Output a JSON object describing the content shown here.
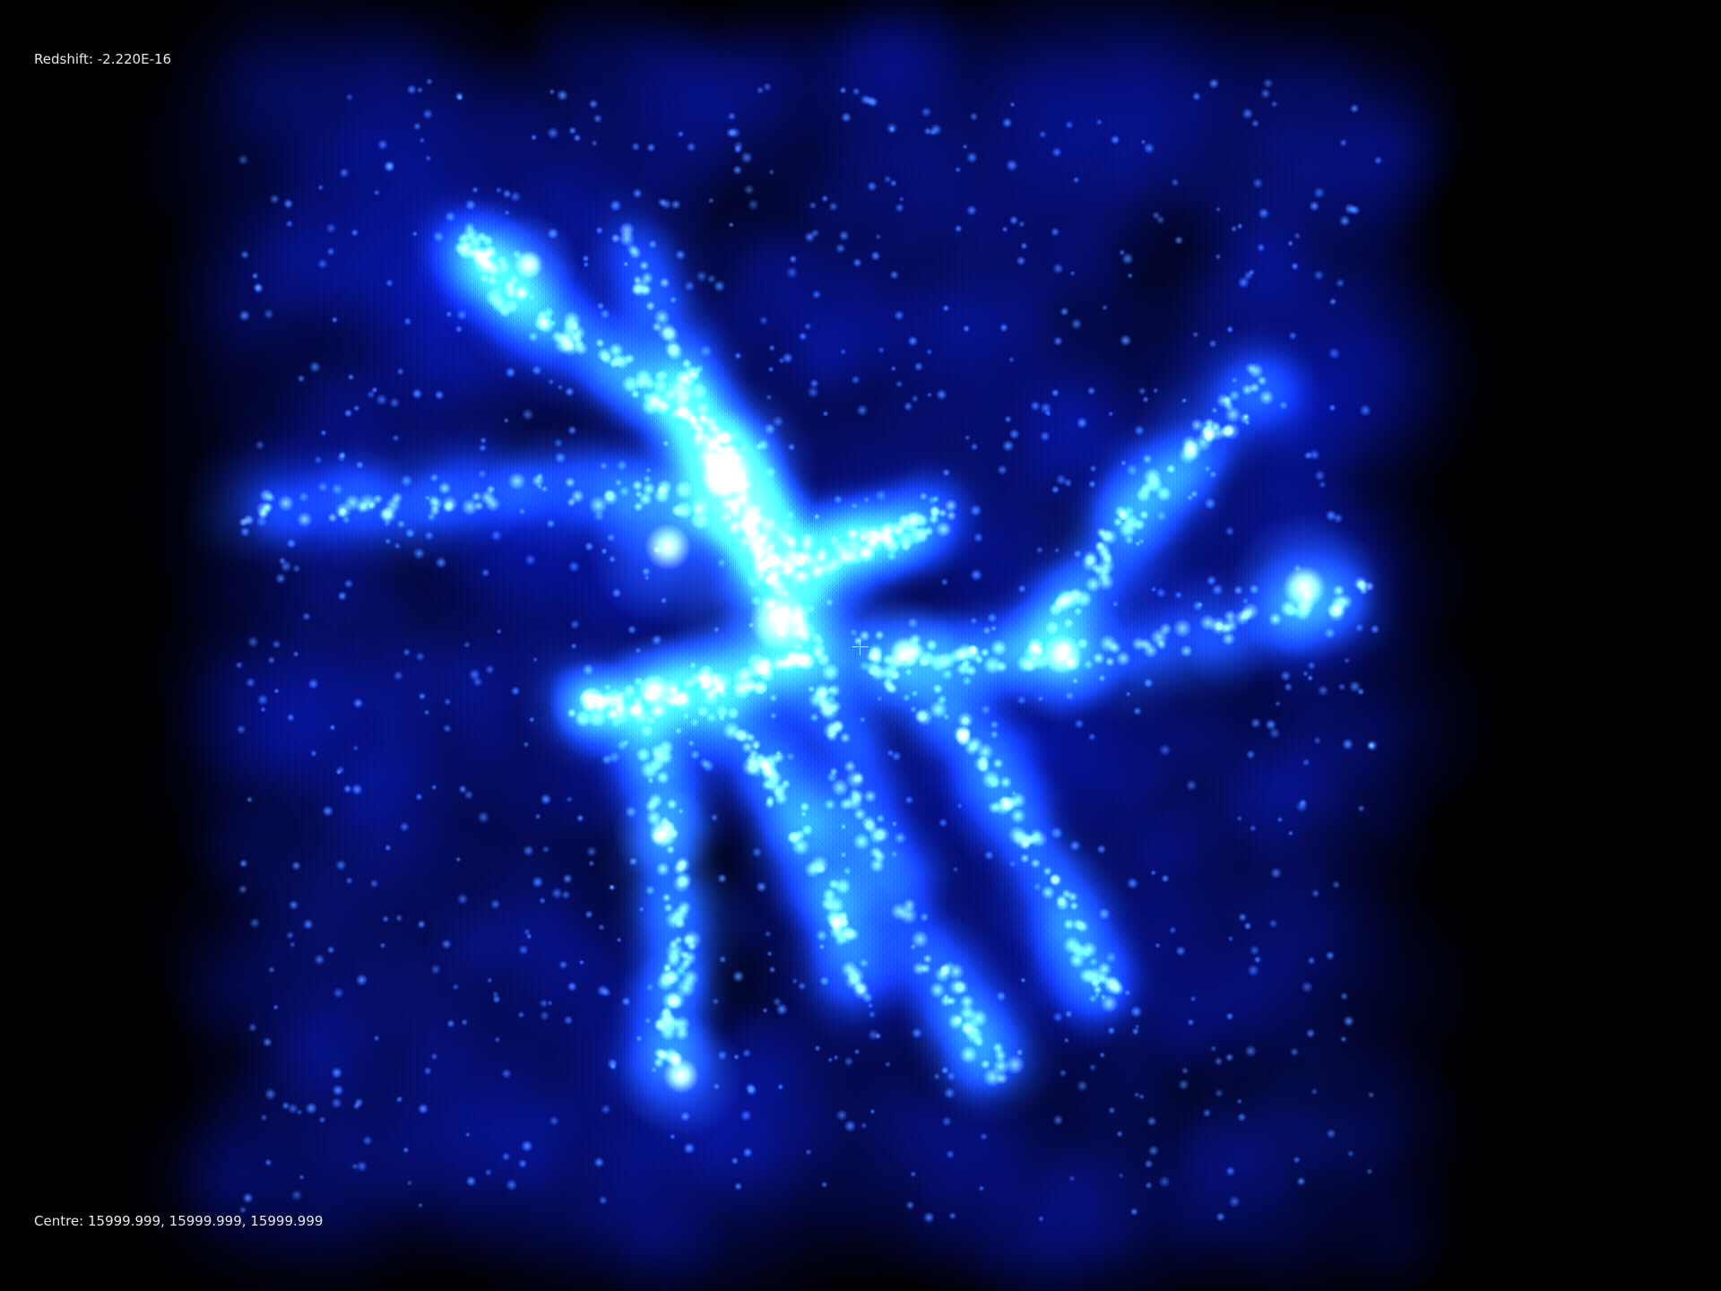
{
  "redshift": {
    "label": "Redshift:",
    "value": "-2.220E-16"
  },
  "centre": {
    "label": "Centre:",
    "value": "15999.999, 15999.999, 15999.999"
  },
  "render": {
    "background": "#000000",
    "halo_color": "#0a1ee0",
    "filament_color": "#2f7bff",
    "node_color": "#ffffff"
  }
}
